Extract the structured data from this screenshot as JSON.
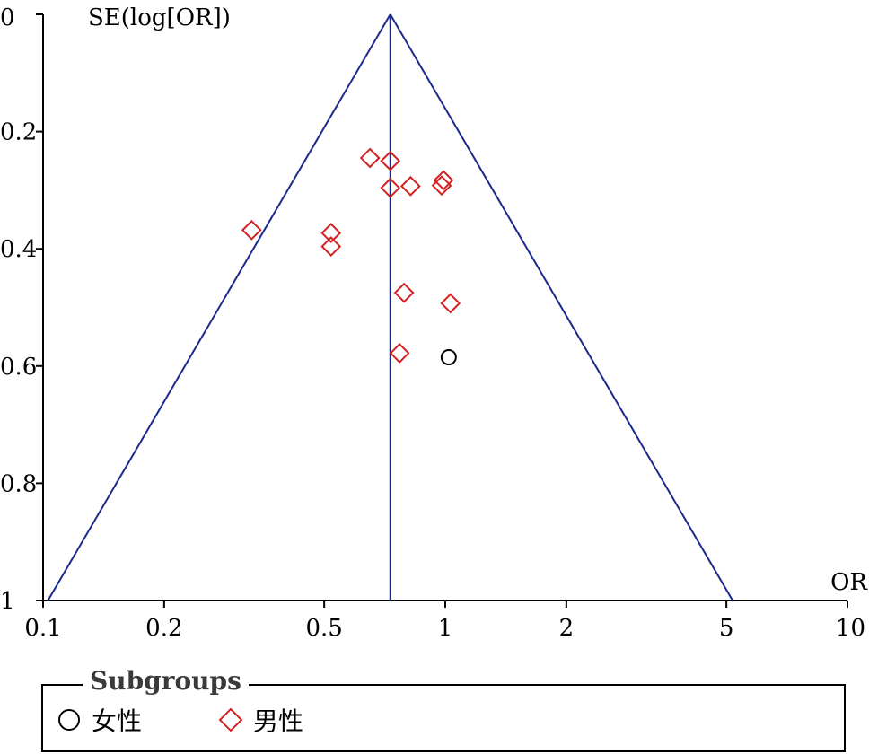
{
  "chart_data": {
    "type": "scatter",
    "title": "",
    "xlabel": "OR",
    "ylabel": "SE(log[OR])",
    "x_scale": "log",
    "xlim": [
      0.1,
      10
    ],
    "ylim": [
      0,
      1
    ],
    "y_inverted": true,
    "x_ticks": [
      "0.1",
      "0.2",
      "0.5",
      "1",
      "2",
      "5",
      "10"
    ],
    "y_ticks": [
      "0",
      "0.2",
      "0.4",
      "0.6",
      "0.8",
      "1"
    ],
    "pooled_or": 0.73,
    "funnel_color": "#1a2a8c",
    "legend": {
      "title": "Subgroups",
      "items": [
        {
          "label": "女性",
          "marker": "circle",
          "color": "#000000"
        },
        {
          "label": "男性",
          "marker": "diamond",
          "color": "#d42020"
        }
      ]
    },
    "series": [
      {
        "name": "女性",
        "marker": "circle",
        "color": "#000000",
        "points": [
          [
            1.02,
            0.585
          ]
        ]
      },
      {
        "name": "男性",
        "marker": "diamond",
        "color": "#d42020",
        "points": [
          [
            0.65,
            0.245
          ],
          [
            0.73,
            0.25
          ],
          [
            0.73,
            0.296
          ],
          [
            0.82,
            0.293
          ],
          [
            0.99,
            0.283
          ],
          [
            0.98,
            0.292
          ],
          [
            0.33,
            0.368
          ],
          [
            0.52,
            0.373
          ],
          [
            0.52,
            0.396
          ],
          [
            0.79,
            0.475
          ],
          [
            1.03,
            0.493
          ],
          [
            0.77,
            0.578
          ]
        ]
      }
    ]
  }
}
